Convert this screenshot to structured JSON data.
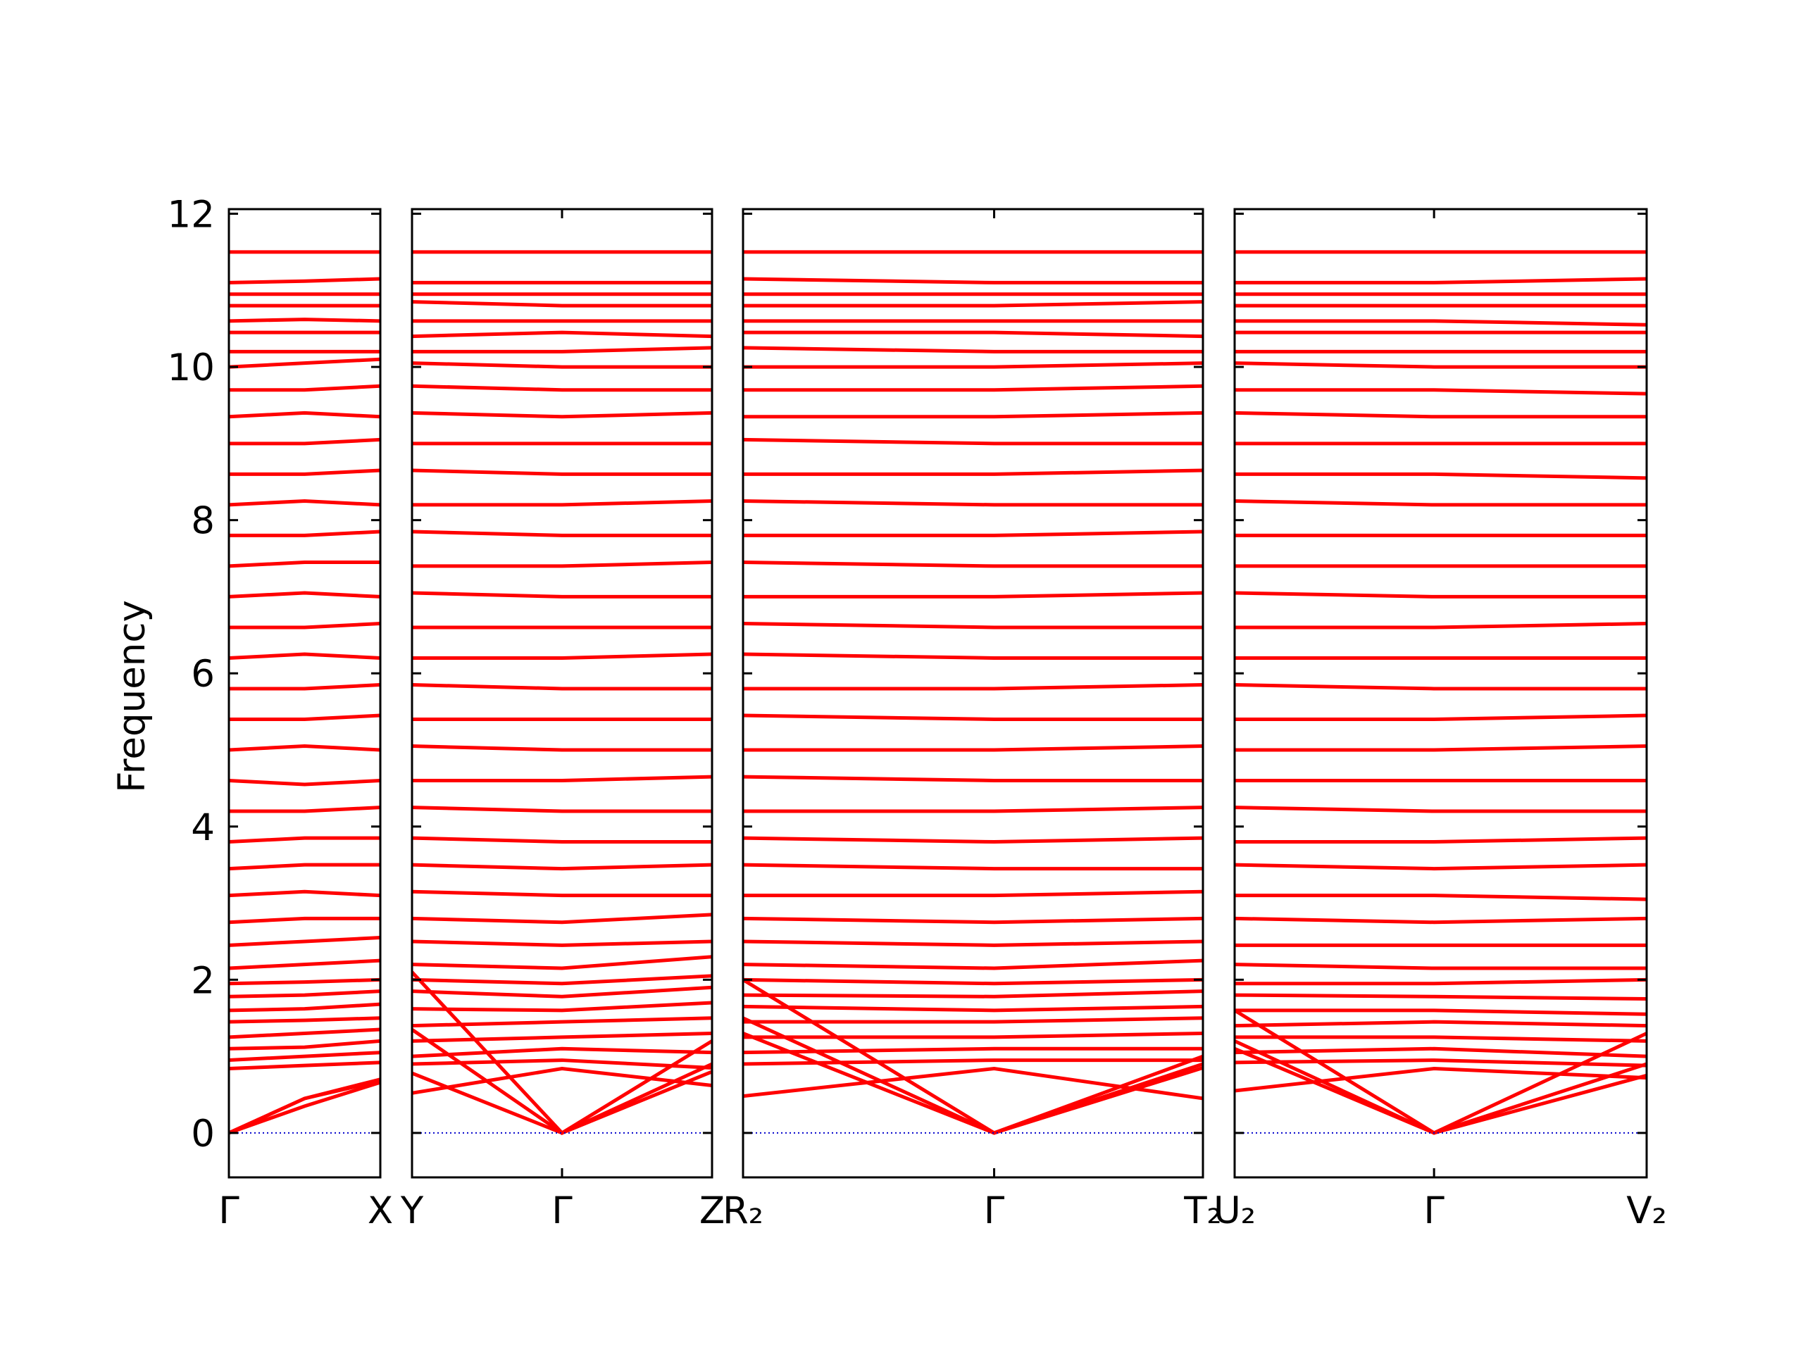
{
  "chart_data": [
    {
      "type": "line",
      "ylabel": "Frequency",
      "show_ytick_labels": true,
      "color": "#ff0000",
      "zero_line_color": "#0000cc",
      "ylim": [
        -0.58,
        12.06
      ],
      "yticks": [
        0,
        2,
        4,
        6,
        8,
        10,
        12
      ],
      "xlim": [
        0,
        1
      ],
      "xticks": [
        {
          "value": 0,
          "label": "Γ"
        },
        {
          "value": 1,
          "label": "X"
        }
      ],
      "x": [
        0,
        0.5,
        1
      ],
      "bands": [
        [
          0,
          0.45,
          0.7
        ],
        [
          0,
          0.45,
          0.68
        ],
        [
          0,
          0.35,
          0.66
        ],
        [
          0.84,
          0.88,
          0.92
        ],
        [
          0.95,
          1.0,
          1.05
        ],
        [
          1.1,
          1.12,
          1.2
        ],
        [
          1.25,
          1.3,
          1.35
        ],
        [
          1.45,
          1.47,
          1.5
        ],
        [
          1.6,
          1.62,
          1.68
        ],
        [
          1.78,
          1.8,
          1.85
        ],
        [
          1.95,
          1.97,
          2.0
        ],
        [
          2.15,
          2.2,
          2.25
        ],
        [
          2.45,
          2.5,
          2.55
        ],
        [
          2.75,
          2.8,
          2.8
        ],
        [
          3.1,
          3.15,
          3.1
        ],
        [
          3.45,
          3.5,
          3.5
        ],
        [
          3.8,
          3.85,
          3.85
        ],
        [
          4.2,
          4.2,
          4.25
        ],
        [
          4.6,
          4.55,
          4.6
        ],
        [
          5.0,
          5.05,
          5.0
        ],
        [
          5.4,
          5.4,
          5.45
        ],
        [
          5.8,
          5.8,
          5.85
        ],
        [
          6.2,
          6.25,
          6.2
        ],
        [
          6.6,
          6.6,
          6.65
        ],
        [
          7.0,
          7.05,
          7.0
        ],
        [
          7.4,
          7.45,
          7.45
        ],
        [
          7.8,
          7.8,
          7.85
        ],
        [
          8.2,
          8.25,
          8.2
        ],
        [
          8.6,
          8.6,
          8.65
        ],
        [
          9.0,
          9.0,
          9.05
        ],
        [
          9.35,
          9.4,
          9.35
        ],
        [
          9.7,
          9.7,
          9.75
        ],
        [
          10.0,
          10.05,
          10.1
        ],
        [
          10.2,
          10.2,
          10.2
        ],
        [
          10.45,
          10.45,
          10.45
        ],
        [
          10.6,
          10.62,
          10.6
        ],
        [
          10.8,
          10.8,
          10.8
        ],
        [
          10.95,
          10.95,
          10.95
        ],
        [
          11.1,
          11.12,
          11.15
        ],
        [
          11.5,
          11.5,
          11.5
        ]
      ]
    },
    {
      "type": "line",
      "show_ytick_labels": false,
      "color": "#ff0000",
      "zero_line_color": "#0000cc",
      "ylim": [
        -0.58,
        12.06
      ],
      "yticks": [
        0,
        2,
        4,
        6,
        8,
        10,
        12
      ],
      "xlim": [
        0,
        1
      ],
      "xticks": [
        {
          "value": 0,
          "label": "Y"
        },
        {
          "value": 0.5,
          "label": "Γ"
        },
        {
          "value": 1,
          "label": "Z"
        }
      ],
      "x": [
        0,
        0.5,
        1
      ],
      "bands": [
        [
          0.78,
          0,
          0.8
        ],
        [
          1.35,
          0,
          0.9
        ],
        [
          2.1,
          0,
          1.2
        ],
        [
          0.52,
          0.84,
          0.62
        ],
        [
          0.9,
          0.95,
          0.85
        ],
        [
          1.0,
          1.1,
          1.05
        ],
        [
          1.2,
          1.25,
          1.3
        ],
        [
          1.4,
          1.45,
          1.5
        ],
        [
          1.62,
          1.6,
          1.7
        ],
        [
          1.85,
          1.78,
          1.9
        ],
        [
          2.0,
          1.95,
          2.05
        ],
        [
          2.2,
          2.15,
          2.3
        ],
        [
          2.5,
          2.45,
          2.5
        ],
        [
          2.8,
          2.75,
          2.85
        ],
        [
          3.15,
          3.1,
          3.1
        ],
        [
          3.5,
          3.45,
          3.5
        ],
        [
          3.85,
          3.8,
          3.8
        ],
        [
          4.25,
          4.2,
          4.2
        ],
        [
          4.6,
          4.6,
          4.65
        ],
        [
          5.05,
          5.0,
          5.0
        ],
        [
          5.4,
          5.4,
          5.4
        ],
        [
          5.85,
          5.8,
          5.8
        ],
        [
          6.2,
          6.2,
          6.25
        ],
        [
          6.6,
          6.6,
          6.6
        ],
        [
          7.05,
          7.0,
          7.0
        ],
        [
          7.4,
          7.4,
          7.45
        ],
        [
          7.85,
          7.8,
          7.8
        ],
        [
          8.2,
          8.2,
          8.25
        ],
        [
          8.65,
          8.6,
          8.6
        ],
        [
          9.0,
          9.0,
          9.0
        ],
        [
          9.4,
          9.35,
          9.4
        ],
        [
          9.75,
          9.7,
          9.7
        ],
        [
          10.05,
          10.0,
          10.0
        ],
        [
          10.2,
          10.2,
          10.25
        ],
        [
          10.4,
          10.45,
          10.4
        ],
        [
          10.6,
          10.6,
          10.6
        ],
        [
          10.85,
          10.8,
          10.8
        ],
        [
          10.95,
          10.95,
          10.95
        ],
        [
          11.1,
          11.1,
          11.1
        ],
        [
          11.5,
          11.5,
          11.5
        ]
      ]
    },
    {
      "type": "line",
      "show_ytick_labels": false,
      "color": "#ff0000",
      "zero_line_color": "#0000cc",
      "ylim": [
        -0.58,
        12.06
      ],
      "yticks": [
        0,
        2,
        4,
        6,
        8,
        10,
        12
      ],
      "xlim": [
        0,
        1
      ],
      "xticks": [
        {
          "value": 0,
          "label": "R₂"
        },
        {
          "value": 0.546,
          "label": "Γ"
        },
        {
          "value": 1,
          "label": "T₂"
        }
      ],
      "x": [
        0,
        0.546,
        1
      ],
      "bands": [
        [
          1.3,
          0,
          1.0
        ],
        [
          1.5,
          0,
          0.9
        ],
        [
          2.0,
          0,
          0.85
        ],
        [
          0.48,
          0.84,
          0.45
        ],
        [
          0.9,
          0.95,
          0.95
        ],
        [
          1.05,
          1.1,
          1.1
        ],
        [
          1.25,
          1.25,
          1.3
        ],
        [
          1.45,
          1.45,
          1.5
        ],
        [
          1.65,
          1.6,
          1.65
        ],
        [
          1.8,
          1.78,
          1.85
        ],
        [
          2.0,
          1.95,
          2.0
        ],
        [
          2.2,
          2.15,
          2.25
        ],
        [
          2.5,
          2.45,
          2.5
        ],
        [
          2.8,
          2.75,
          2.8
        ],
        [
          3.1,
          3.1,
          3.15
        ],
        [
          3.5,
          3.45,
          3.45
        ],
        [
          3.85,
          3.8,
          3.85
        ],
        [
          4.2,
          4.2,
          4.25
        ],
        [
          4.65,
          4.6,
          4.6
        ],
        [
          5.0,
          5.0,
          5.05
        ],
        [
          5.45,
          5.4,
          5.4
        ],
        [
          5.8,
          5.8,
          5.85
        ],
        [
          6.25,
          6.2,
          6.2
        ],
        [
          6.65,
          6.6,
          6.6
        ],
        [
          7.0,
          7.0,
          7.05
        ],
        [
          7.45,
          7.4,
          7.4
        ],
        [
          7.8,
          7.8,
          7.85
        ],
        [
          8.25,
          8.2,
          8.2
        ],
        [
          8.6,
          8.6,
          8.65
        ],
        [
          9.05,
          9.0,
          9.0
        ],
        [
          9.35,
          9.35,
          9.4
        ],
        [
          9.7,
          9.7,
          9.75
        ],
        [
          10.0,
          10.0,
          10.05
        ],
        [
          10.25,
          10.2,
          10.2
        ],
        [
          10.45,
          10.45,
          10.4
        ],
        [
          10.6,
          10.6,
          10.6
        ],
        [
          10.8,
          10.8,
          10.85
        ],
        [
          10.95,
          10.95,
          10.95
        ],
        [
          11.15,
          11.1,
          11.1
        ],
        [
          11.5,
          11.5,
          11.5
        ]
      ]
    },
    {
      "type": "line",
      "show_ytick_labels": false,
      "color": "#ff0000",
      "zero_line_color": "#0000cc",
      "ylim": [
        -0.58,
        12.06
      ],
      "yticks": [
        0,
        2,
        4,
        6,
        8,
        10,
        12
      ],
      "xlim": [
        0,
        1
      ],
      "xticks": [
        {
          "value": 0,
          "label": "U₂"
        },
        {
          "value": 0.484,
          "label": "Γ"
        },
        {
          "value": 1,
          "label": "V₂"
        }
      ],
      "x": [
        0,
        0.484,
        1
      ],
      "bands": [
        [
          1.2,
          0,
          0.9
        ],
        [
          1.1,
          0,
          0.75
        ],
        [
          1.6,
          0,
          1.3
        ],
        [
          0.55,
          0.84,
          0.72
        ],
        [
          0.92,
          0.95,
          0.88
        ],
        [
          1.05,
          1.1,
          1.0
        ],
        [
          1.25,
          1.25,
          1.2
        ],
        [
          1.4,
          1.45,
          1.4
        ],
        [
          1.6,
          1.6,
          1.55
        ],
        [
          1.8,
          1.78,
          1.75
        ],
        [
          1.95,
          1.95,
          2.0
        ],
        [
          2.2,
          2.15,
          2.15
        ],
        [
          2.45,
          2.45,
          2.45
        ],
        [
          2.8,
          2.75,
          2.8
        ],
        [
          3.1,
          3.1,
          3.05
        ],
        [
          3.5,
          3.45,
          3.5
        ],
        [
          3.8,
          3.8,
          3.85
        ],
        [
          4.25,
          4.2,
          4.2
        ],
        [
          4.6,
          4.6,
          4.6
        ],
        [
          5.0,
          5.0,
          5.05
        ],
        [
          5.4,
          5.4,
          5.45
        ],
        [
          5.85,
          5.8,
          5.8
        ],
        [
          6.2,
          6.2,
          6.2
        ],
        [
          6.6,
          6.6,
          6.65
        ],
        [
          7.05,
          7.0,
          7.0
        ],
        [
          7.4,
          7.4,
          7.4
        ],
        [
          7.8,
          7.8,
          7.8
        ],
        [
          8.25,
          8.2,
          8.2
        ],
        [
          8.6,
          8.6,
          8.55
        ],
        [
          9.0,
          9.0,
          9.0
        ],
        [
          9.4,
          9.35,
          9.35
        ],
        [
          9.7,
          9.7,
          9.65
        ],
        [
          10.05,
          10.0,
          10.0
        ],
        [
          10.2,
          10.2,
          10.2
        ],
        [
          10.45,
          10.45,
          10.45
        ],
        [
          10.6,
          10.6,
          10.55
        ],
        [
          10.8,
          10.8,
          10.8
        ],
        [
          10.95,
          10.95,
          10.95
        ],
        [
          11.1,
          11.1,
          11.15
        ],
        [
          11.5,
          11.5,
          11.5
        ]
      ]
    }
  ]
}
